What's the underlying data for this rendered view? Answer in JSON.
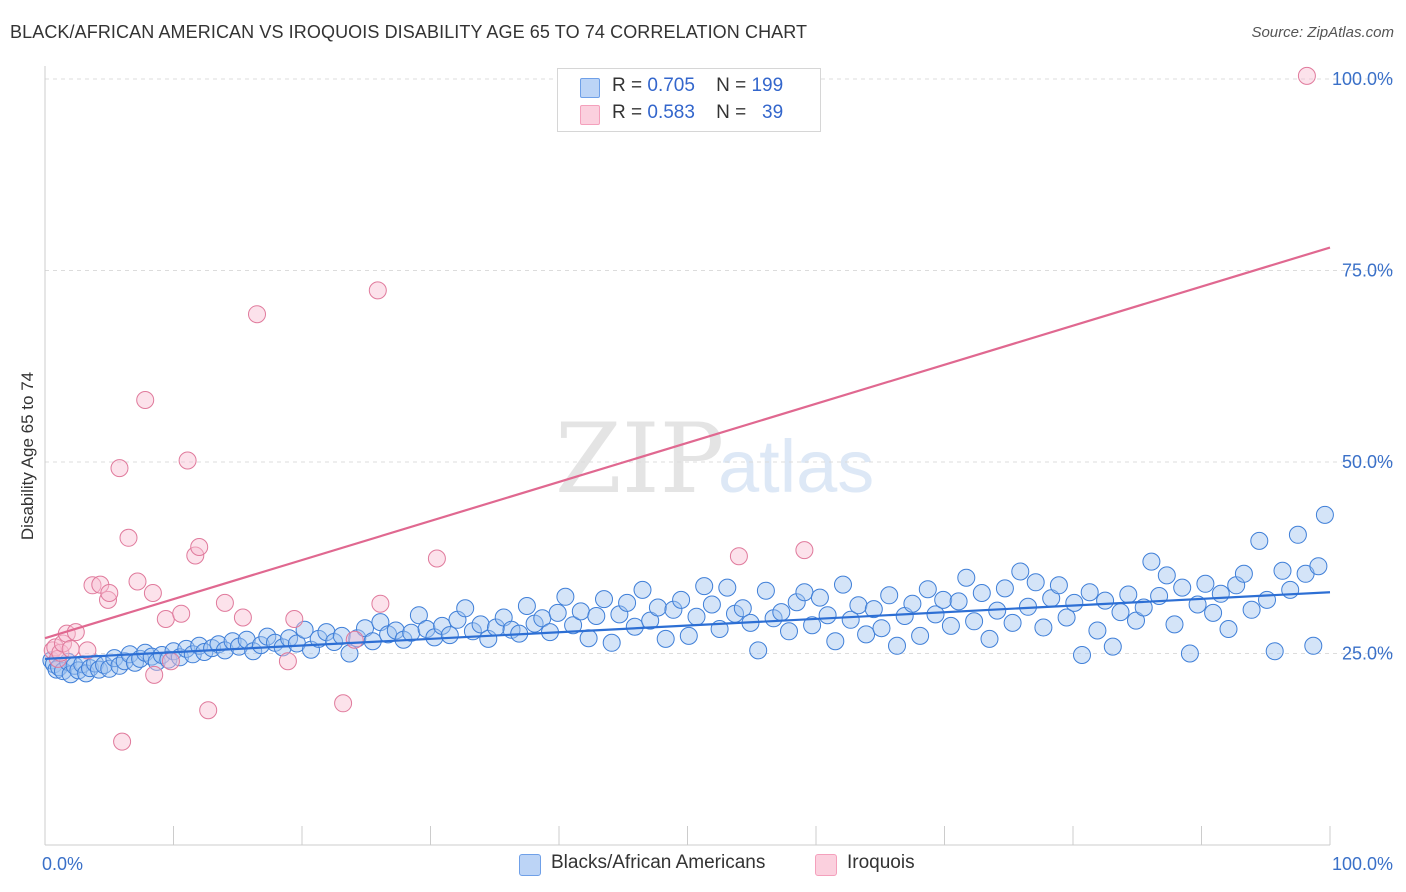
{
  "title": "BLACK/AFRICAN AMERICAN VS IROQUOIS DISABILITY AGE 65 TO 74 CORRELATION CHART",
  "source": "Source: ZipAtlas.com",
  "watermark": {
    "zip": "ZIP",
    "atlas": "atlas"
  },
  "legend_top": [
    {
      "r_label": "R =",
      "r_value": "0.705",
      "n_label": "N =",
      "n_value": "199",
      "color": "#6fa0e8"
    },
    {
      "r_label": "R =",
      "r_value": "0.583",
      "n_label": "N =",
      "n_value": "39",
      "color": "#f4a0bc"
    }
  ],
  "chart_data": {
    "type": "scatter",
    "title": "BLACK/AFRICAN AMERICAN VS IROQUOIS DISABILITY AGE 65 TO 74 CORRELATION CHART",
    "xlabel": "",
    "ylabel": "Disability Age 65 to 74",
    "xlim": [
      0,
      100
    ],
    "ylim": [
      0,
      100
    ],
    "x_tick_labels": [
      "0.0%",
      "100.0%"
    ],
    "y_tick_labels": [
      "25.0%",
      "50.0%",
      "75.0%",
      "100.0%"
    ],
    "y_tick_values": [
      25,
      50,
      75,
      100
    ],
    "grid": true,
    "legend_position": "top-center",
    "series": [
      {
        "name": "Blacks/African Americans",
        "color": "#6fa0e8",
        "stroke": "#3f7fd8",
        "trend": {
          "x": [
            0,
            100
          ],
          "y": [
            24.3,
            33.0
          ],
          "color": "#2d6fd4"
        },
        "points": [
          [
            0.5,
            24.1
          ],
          [
            0.7,
            23.6
          ],
          [
            0.9,
            22.9
          ],
          [
            1.1,
            23.2
          ],
          [
            1.4,
            22.7
          ],
          [
            1.8,
            23.9
          ],
          [
            2.0,
            22.3
          ],
          [
            2.3,
            23.4
          ],
          [
            2.6,
            22.8
          ],
          [
            2.9,
            23.6
          ],
          [
            3.2,
            22.4
          ],
          [
            3.5,
            23.1
          ],
          [
            3.9,
            23.7
          ],
          [
            4.2,
            22.9
          ],
          [
            4.6,
            23.5
          ],
          [
            5.0,
            23.0
          ],
          [
            5.4,
            24.4
          ],
          [
            5.8,
            23.4
          ],
          [
            6.2,
            24.0
          ],
          [
            6.6,
            24.9
          ],
          [
            7.0,
            23.8
          ],
          [
            7.4,
            24.3
          ],
          [
            7.8,
            25.1
          ],
          [
            8.3,
            24.6
          ],
          [
            8.7,
            23.9
          ],
          [
            9.1,
            24.8
          ],
          [
            9.6,
            24.2
          ],
          [
            10.0,
            25.3
          ],
          [
            10.5,
            24.5
          ],
          [
            11.0,
            25.6
          ],
          [
            11.5,
            24.9
          ],
          [
            12.0,
            26.0
          ],
          [
            12.4,
            25.2
          ],
          [
            13.0,
            25.7
          ],
          [
            13.5,
            26.2
          ],
          [
            14.0,
            25.4
          ],
          [
            14.6,
            26.6
          ],
          [
            15.1,
            25.9
          ],
          [
            15.7,
            26.8
          ],
          [
            16.2,
            25.3
          ],
          [
            16.8,
            26.1
          ],
          [
            17.3,
            27.2
          ],
          [
            17.9,
            26.4
          ],
          [
            18.5,
            25.8
          ],
          [
            19.0,
            27.0
          ],
          [
            19.6,
            26.3
          ],
          [
            20.2,
            28.1
          ],
          [
            20.7,
            25.5
          ],
          [
            21.3,
            26.9
          ],
          [
            21.9,
            27.8
          ],
          [
            22.5,
            26.5
          ],
          [
            23.1,
            27.3
          ],
          [
            23.7,
            25.0
          ],
          [
            24.3,
            27.0
          ],
          [
            24.9,
            28.3
          ],
          [
            25.5,
            26.6
          ],
          [
            26.1,
            29.1
          ],
          [
            26.7,
            27.5
          ],
          [
            27.3,
            28.0
          ],
          [
            27.9,
            26.8
          ],
          [
            28.5,
            27.7
          ],
          [
            29.1,
            30.0
          ],
          [
            29.7,
            28.2
          ],
          [
            30.3,
            27.1
          ],
          [
            30.9,
            28.6
          ],
          [
            31.5,
            27.4
          ],
          [
            32.1,
            29.4
          ],
          [
            32.7,
            30.9
          ],
          [
            33.3,
            27.9
          ],
          [
            33.9,
            28.8
          ],
          [
            34.5,
            26.9
          ],
          [
            35.1,
            28.4
          ],
          [
            35.7,
            29.7
          ],
          [
            36.3,
            28.1
          ],
          [
            36.9,
            27.6
          ],
          [
            37.5,
            31.2
          ],
          [
            38.1,
            28.9
          ],
          [
            38.7,
            29.6
          ],
          [
            39.3,
            27.8
          ],
          [
            39.9,
            30.3
          ],
          [
            40.5,
            32.4
          ],
          [
            41.1,
            28.7
          ],
          [
            41.7,
            30.5
          ],
          [
            42.3,
            27.0
          ],
          [
            42.9,
            29.9
          ],
          [
            43.5,
            32.1
          ],
          [
            44.1,
            26.4
          ],
          [
            44.7,
            30.1
          ],
          [
            45.3,
            31.6
          ],
          [
            45.9,
            28.5
          ],
          [
            46.5,
            33.3
          ],
          [
            47.1,
            29.3
          ],
          [
            47.7,
            31.0
          ],
          [
            48.3,
            26.9
          ],
          [
            48.9,
            30.7
          ],
          [
            49.5,
            32.0
          ],
          [
            50.1,
            27.3
          ],
          [
            50.7,
            29.8
          ],
          [
            51.3,
            33.8
          ],
          [
            51.9,
            31.4
          ],
          [
            52.5,
            28.2
          ],
          [
            53.1,
            33.6
          ],
          [
            53.7,
            30.2
          ],
          [
            54.3,
            30.9
          ],
          [
            54.9,
            29.0
          ],
          [
            55.5,
            25.4
          ],
          [
            56.1,
            33.2
          ],
          [
            56.7,
            29.6
          ],
          [
            57.3,
            30.4
          ],
          [
            57.9,
            27.9
          ],
          [
            58.5,
            31.7
          ],
          [
            59.1,
            33.0
          ],
          [
            59.7,
            28.7
          ],
          [
            60.3,
            32.3
          ],
          [
            60.9,
            30.0
          ],
          [
            61.5,
            26.6
          ],
          [
            62.1,
            34.0
          ],
          [
            62.7,
            29.4
          ],
          [
            63.3,
            31.3
          ],
          [
            63.9,
            27.5
          ],
          [
            64.5,
            30.8
          ],
          [
            65.1,
            28.3
          ],
          [
            65.7,
            32.6
          ],
          [
            66.3,
            26.0
          ],
          [
            66.9,
            29.9
          ],
          [
            67.5,
            31.5
          ],
          [
            68.1,
            27.3
          ],
          [
            68.7,
            33.4
          ],
          [
            69.3,
            30.1
          ],
          [
            69.9,
            32.0
          ],
          [
            70.5,
            28.6
          ],
          [
            71.1,
            31.8
          ],
          [
            71.7,
            34.9
          ],
          [
            72.3,
            29.2
          ],
          [
            72.9,
            32.9
          ],
          [
            73.5,
            26.9
          ],
          [
            74.1,
            30.6
          ],
          [
            74.7,
            33.5
          ],
          [
            75.3,
            29.0
          ],
          [
            75.9,
            35.7
          ],
          [
            76.5,
            31.1
          ],
          [
            77.1,
            34.3
          ],
          [
            77.7,
            28.4
          ],
          [
            78.3,
            32.2
          ],
          [
            78.9,
            33.9
          ],
          [
            79.5,
            29.7
          ],
          [
            80.1,
            31.6
          ],
          [
            80.7,
            24.8
          ],
          [
            81.3,
            33.0
          ],
          [
            81.9,
            28.0
          ],
          [
            82.5,
            31.9
          ],
          [
            83.1,
            25.9
          ],
          [
            83.7,
            30.4
          ],
          [
            84.3,
            32.7
          ],
          [
            84.9,
            29.3
          ],
          [
            85.5,
            31.0
          ],
          [
            86.1,
            37.0
          ],
          [
            86.7,
            32.5
          ],
          [
            87.3,
            35.2
          ],
          [
            87.9,
            28.8
          ],
          [
            88.5,
            33.6
          ],
          [
            89.1,
            25.0
          ],
          [
            89.7,
            31.4
          ],
          [
            90.3,
            34.1
          ],
          [
            90.9,
            30.3
          ],
          [
            91.5,
            32.8
          ],
          [
            92.1,
            28.2
          ],
          [
            92.7,
            33.9
          ],
          [
            93.3,
            35.4
          ],
          [
            93.9,
            30.7
          ],
          [
            94.5,
            39.7
          ],
          [
            95.1,
            32.0
          ],
          [
            95.7,
            25.3
          ],
          [
            96.3,
            35.8
          ],
          [
            96.9,
            33.3
          ],
          [
            97.5,
            40.5
          ],
          [
            98.1,
            35.4
          ],
          [
            98.7,
            26.0
          ],
          [
            99.1,
            36.4
          ],
          [
            99.6,
            43.1
          ]
        ]
      },
      {
        "name": "Iroquois",
        "color": "#f4a0bc",
        "stroke": "#e07a9c",
        "trend": {
          "x": [
            0,
            100
          ],
          "y": [
            27.0,
            78.0
          ],
          "color": "#e06890"
        },
        "points": [
          [
            0.6,
            25.4
          ],
          [
            0.8,
            25.8
          ],
          [
            1.0,
            24.3
          ],
          [
            1.2,
            25.1
          ],
          [
            1.4,
            26.3
          ],
          [
            1.7,
            27.6
          ],
          [
            2.0,
            25.6
          ],
          [
            2.4,
            27.8
          ],
          [
            3.3,
            25.4
          ],
          [
            3.7,
            33.9
          ],
          [
            4.3,
            34.0
          ],
          [
            4.9,
            32.0
          ],
          [
            5.0,
            32.9
          ],
          [
            5.8,
            49.2
          ],
          [
            6.0,
            13.5
          ],
          [
            6.5,
            40.1
          ],
          [
            7.2,
            34.4
          ],
          [
            7.8,
            58.1
          ],
          [
            8.4,
            32.9
          ],
          [
            8.5,
            22.2
          ],
          [
            9.4,
            29.5
          ],
          [
            9.8,
            24.0
          ],
          [
            10.6,
            30.2
          ],
          [
            11.1,
            50.2
          ],
          [
            11.7,
            37.8
          ],
          [
            12.0,
            38.9
          ],
          [
            12.7,
            17.6
          ],
          [
            14.0,
            31.6
          ],
          [
            15.4,
            29.7
          ],
          [
            16.5,
            69.3
          ],
          [
            18.9,
            24.0
          ],
          [
            19.4,
            29.5
          ],
          [
            23.2,
            18.5
          ],
          [
            24.1,
            26.8
          ],
          [
            25.9,
            72.4
          ],
          [
            26.1,
            31.5
          ],
          [
            30.5,
            37.4
          ],
          [
            54.0,
            37.7
          ],
          [
            59.1,
            38.5
          ],
          [
            98.2,
            100.4
          ]
        ]
      }
    ]
  },
  "legend_bottom": [
    {
      "label": "Blacks/African Americans",
      "color": "#6fa0e8"
    },
    {
      "label": "Iroquois",
      "color": "#f4a0bc"
    }
  ]
}
